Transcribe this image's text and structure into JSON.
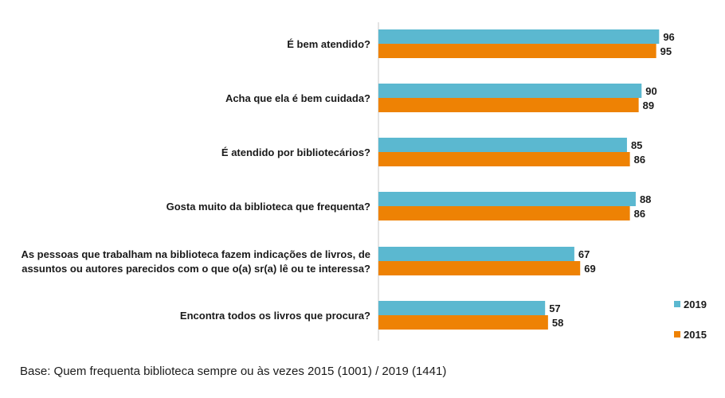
{
  "chart_data": {
    "type": "bar",
    "orientation": "horizontal",
    "categories": [
      [
        "É bem atendido?"
      ],
      [
        "Acha que ela é bem cuidada?"
      ],
      [
        "É atendido por bibliotecários?"
      ],
      [
        "Gosta muito da biblioteca que frequenta?"
      ],
      [
        "As pessoas que trabalham na biblioteca fazem indicações de livros, de",
        "assuntos ou autores parecidos com o que o(a) sr(a) lê ou te interessa?"
      ],
      [
        "Encontra todos os livros que procura?"
      ]
    ],
    "series": [
      {
        "name": "2019",
        "color": "#5BB8D0",
        "values": [
          96,
          90,
          85,
          88,
          67,
          57
        ]
      },
      {
        "name": "2015",
        "color": "#EE8204",
        "values": [
          95,
          89,
          86,
          86,
          69,
          58
        ]
      }
    ],
    "xlim": [
      0,
      100
    ],
    "legend_position": "bottom-right",
    "grid": false
  },
  "footnote": "Base: Quem frequenta biblioteca sempre ou às vezes 2015 (1001) / 2019 (1441)"
}
